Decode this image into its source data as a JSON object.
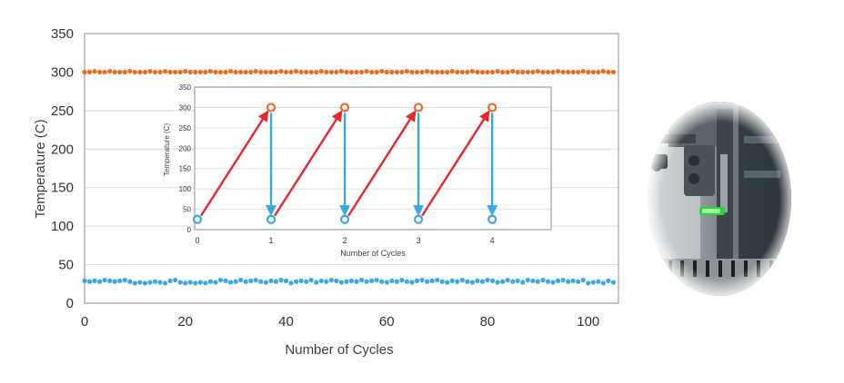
{
  "chart_data": [
    {
      "type": "scatter",
      "xlabel": "Number of Cycles",
      "ylabel": "Temperature (C)",
      "xlim": [
        0,
        106
      ],
      "ylim": [
        0,
        350
      ],
      "x_ticks": [
        "0",
        "20",
        "40",
        "60",
        "80",
        "100"
      ],
      "y_ticks": [
        "0",
        "50",
        "100",
        "150",
        "200",
        "250",
        "300",
        "350"
      ],
      "grid": "horizontal",
      "colors": {
        "high": "#ee6a1f",
        "low": "#3ba8e6"
      },
      "series": [
        {
          "values": [
            300,
            300,
            301,
            300,
            300,
            301,
            300,
            300,
            300,
            301,
            300,
            300,
            300,
            301,
            300,
            300,
            301,
            300,
            300,
            300,
            301,
            300,
            300,
            300,
            300,
            301,
            300,
            300,
            300,
            301,
            300,
            300,
            300,
            300,
            301,
            300,
            300,
            300,
            300,
            301,
            300,
            300,
            301,
            300,
            300,
            300,
            300,
            301,
            300,
            300,
            300,
            301,
            300,
            300,
            300,
            300,
            301,
            300,
            300,
            301,
            300,
            300,
            300,
            300,
            301,
            300,
            300,
            300,
            301,
            300,
            300,
            300,
            300,
            301,
            300,
            300,
            300,
            301,
            300,
            300,
            300,
            300,
            301,
            300,
            300,
            301,
            300,
            300,
            300,
            300,
            301,
            300,
            300,
            300,
            301,
            300,
            300,
            300,
            300,
            301,
            300,
            300,
            300,
            301,
            300,
            300
          ]
        },
        {
          "values": [
            29,
            28,
            29,
            28,
            30,
            29,
            28,
            29,
            30,
            28,
            26,
            27,
            26,
            27,
            28,
            27,
            26,
            29,
            30,
            27,
            26,
            27,
            26,
            27,
            26,
            28,
            27,
            30,
            29,
            27,
            28,
            30,
            28,
            29,
            30,
            28,
            27,
            29,
            28,
            30,
            29,
            26,
            28,
            29,
            28,
            30,
            27,
            29,
            28,
            30,
            29,
            27,
            28,
            29,
            28,
            30,
            28,
            29,
            30,
            28,
            27,
            29,
            28,
            30,
            28,
            27,
            29,
            30,
            28,
            29,
            30,
            28,
            27,
            29,
            28,
            30,
            28,
            27,
            29,
            28,
            30,
            29,
            27,
            28,
            30,
            28,
            29,
            27,
            30,
            29,
            28,
            30,
            28,
            27,
            29,
            30,
            28,
            29,
            28,
            30,
            26,
            27,
            28,
            26,
            29,
            27
          ]
        }
      ]
    },
    {
      "type": "line",
      "inset": true,
      "xlabel": "Number of Cycles",
      "ylabel": "Temperature (C)",
      "xlim": [
        0,
        4.8
      ],
      "ylim": [
        0,
        350
      ],
      "x_ticks": [
        "0",
        "1",
        "2",
        "3",
        "4"
      ],
      "y_ticks": [
        "0",
        "50",
        "100",
        "150",
        "200",
        "250",
        "300",
        "350"
      ],
      "grid": "horizontal",
      "colors": {
        "heat": "#e8262b",
        "cool": "#3ba8e6",
        "high_marker": "#ee6a1f",
        "low_marker": "#3ba8e6"
      },
      "high_points": [
        {
          "x": 1,
          "y": 300
        },
        {
          "x": 2,
          "y": 300
        },
        {
          "x": 3,
          "y": 300
        },
        {
          "x": 4,
          "y": 300
        }
      ],
      "low_points": [
        {
          "x": 0,
          "y": 25
        },
        {
          "x": 1,
          "y": 25
        },
        {
          "x": 2,
          "y": 25
        },
        {
          "x": 3,
          "y": 25
        },
        {
          "x": 4,
          "y": 25
        }
      ]
    }
  ],
  "photo": {
    "icon": "test-rig-photo"
  }
}
